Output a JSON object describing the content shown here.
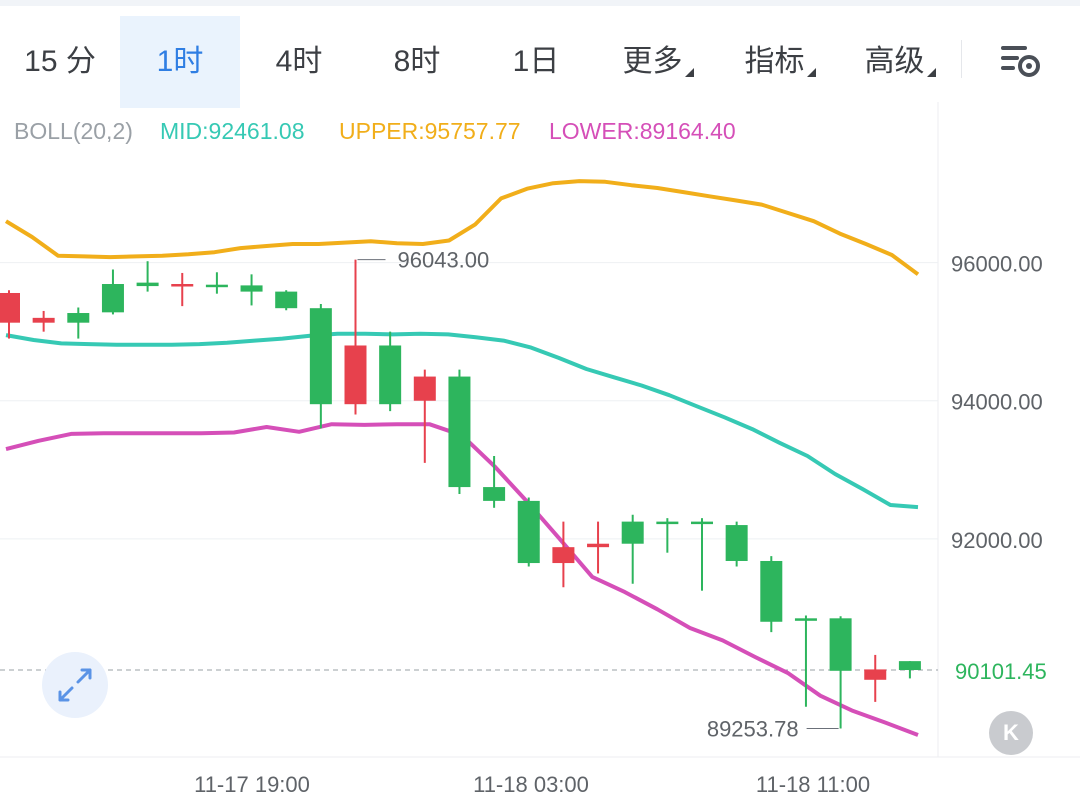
{
  "tabs": [
    {
      "label": "15 分",
      "active": false
    },
    {
      "label": "1时",
      "active": true
    },
    {
      "label": "4时",
      "active": false
    },
    {
      "label": "8时",
      "active": false
    },
    {
      "label": "1日",
      "active": false
    },
    {
      "label": "更多",
      "active": false,
      "dropdown": true
    },
    {
      "label": "指标",
      "active": false,
      "dropdown": true
    },
    {
      "label": "高级",
      "active": false,
      "dropdown": true
    }
  ],
  "icons": {
    "settings": "chart-settings-icon",
    "expand": "expand-arrows-icon",
    "kline": "k-logo-icon"
  },
  "kline_label": "K",
  "colors": {
    "accent": "#2f7ee3",
    "up": "#e7414d",
    "down": "#2db55d",
    "upper": "#f1ae1a",
    "mid": "#36c9b4",
    "lower": "#d54fb8"
  },
  "boll": {
    "name": "BOLL(20,2)",
    "mid_label": "MID:92461.08",
    "upper_label": "UPPER:95757.77",
    "lower_label": "LOWER:89164.40"
  },
  "chart_data": {
    "type": "candlestick",
    "interval": "1h",
    "y_ticks": [
      "96000.00",
      "94000.00",
      "92000.00"
    ],
    "x_labels": [
      "11-17 19:00",
      "11-18 03:00",
      "11-18 11:00"
    ],
    "current_price": "90101.45",
    "high_marker": "96043.00",
    "low_marker": "89253.78",
    "ylim": [
      88900,
      97300
    ],
    "candles": [
      {
        "o": 95130,
        "c": 95560,
        "h": 95600,
        "l": 94900
      },
      {
        "o": 95130,
        "c": 95200,
        "h": 95300,
        "l": 95000
      },
      {
        "o": 95270,
        "c": 95130,
        "h": 95350,
        "l": 94900
      },
      {
        "o": 95690,
        "c": 95280,
        "h": 95900,
        "l": 95250
      },
      {
        "o": 95710,
        "c": 95660,
        "h": 96020,
        "l": 95580
      },
      {
        "o": 95680,
        "c": 95690,
        "h": 95850,
        "l": 95370
      },
      {
        "o": 95680,
        "c": 95660,
        "h": 95860,
        "l": 95550
      },
      {
        "o": 95670,
        "c": 95580,
        "h": 95830,
        "l": 95380
      },
      {
        "o": 95580,
        "c": 95340,
        "h": 95600,
        "l": 95310
      },
      {
        "o": 95340,
        "c": 93950,
        "h": 95400,
        "l": 93600
      },
      {
        "o": 93950,
        "c": 94800,
        "h": 96043,
        "l": 93800
      },
      {
        "o": 94800,
        "c": 93950,
        "h": 95000,
        "l": 93850
      },
      {
        "o": 94000,
        "c": 94350,
        "h": 94450,
        "l": 93100
      },
      {
        "o": 94350,
        "c": 92750,
        "h": 94450,
        "l": 92650
      },
      {
        "o": 92750,
        "c": 92550,
        "h": 93200,
        "l": 92450
      },
      {
        "o": 92550,
        "c": 91650,
        "h": 92600,
        "l": 91600
      },
      {
        "o": 91650,
        "c": 91880,
        "h": 92250,
        "l": 91300
      },
      {
        "o": 91880,
        "c": 91930,
        "h": 92250,
        "l": 91500
      },
      {
        "o": 92250,
        "c": 91930,
        "h": 92350,
        "l": 91350
      },
      {
        "o": 92250,
        "c": 92220,
        "h": 92300,
        "l": 91800
      },
      {
        "o": 92250,
        "c": 92220,
        "h": 92300,
        "l": 91250
      },
      {
        "o": 92200,
        "c": 91680,
        "h": 92250,
        "l": 91600
      },
      {
        "o": 91680,
        "c": 90800,
        "h": 91750,
        "l": 90650
      },
      {
        "o": 90850,
        "c": 90830,
        "h": 90890,
        "l": 89570
      },
      {
        "o": 90850,
        "c": 90090,
        "h": 90880,
        "l": 89253.78
      },
      {
        "o": 89960,
        "c": 90110,
        "h": 90320,
        "l": 89640
      },
      {
        "o": 90230,
        "c": 90101.45,
        "h": 90230,
        "l": 89980
      }
    ],
    "series": [
      {
        "name": "UPPER",
        "values": [
          96600,
          96370,
          96100,
          96090,
          96080,
          96090,
          96100,
          96120,
          96150,
          96210,
          96240,
          96270,
          96270,
          96290,
          96310,
          96280,
          96270,
          96320,
          96550,
          96930,
          97070,
          97150,
          97180,
          97170,
          97120,
          97080,
          97020,
          96960,
          96900,
          96840,
          96720,
          96600,
          96420,
          96270,
          96110,
          95830
        ]
      },
      {
        "name": "MID",
        "values": [
          94950,
          94880,
          94830,
          94820,
          94810,
          94810,
          94810,
          94820,
          94840,
          94870,
          94900,
          94940,
          94970,
          94970,
          94960,
          94970,
          94960,
          94920,
          94870,
          94770,
          94620,
          94460,
          94340,
          94220,
          94080,
          93920,
          93760,
          93590,
          93390,
          93200,
          92940,
          92720,
          92490,
          92460
        ]
      },
      {
        "name": "LOWER",
        "values": [
          93300,
          93420,
          93520,
          93530,
          93530,
          93530,
          93530,
          93540,
          93620,
          93550,
          93660,
          93650,
          93660,
          93660,
          93500,
          93050,
          92540,
          92000,
          91450,
          91230,
          90980,
          90710,
          90530,
          90290,
          90060,
          89730,
          89510,
          89340,
          89160
        ]
      }
    ]
  }
}
